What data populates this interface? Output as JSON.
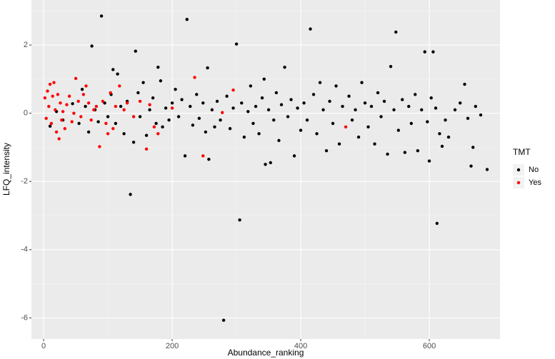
{
  "chart_data": {
    "type": "scatter",
    "x_label": "Abundance_ranking",
    "y_label": "LFQ_intensity",
    "legend_title": "TMT",
    "legend_position": "right",
    "xlim": [
      -19,
      710
    ],
    "ylim": [
      -6.62,
      3.32
    ],
    "xticks": [
      0,
      200,
      400,
      600
    ],
    "yticks": [
      -6,
      -4,
      -2,
      0,
      2
    ],
    "x_minor_ticks": [
      100,
      300,
      500
    ],
    "y_minor_ticks": [
      -5,
      -3,
      -1,
      1,
      3
    ],
    "grid": true,
    "series": [
      {
        "name": "No",
        "color": "#000000",
        "x": [
          10,
          20,
          30,
          45,
          55,
          60,
          65,
          70,
          75,
          80,
          85,
          90,
          95,
          100,
          105,
          108,
          112,
          115,
          120,
          125,
          130,
          135,
          140,
          143,
          147,
          150,
          155,
          160,
          165,
          170,
          175,
          178,
          182,
          185,
          190,
          195,
          200,
          205,
          210,
          215,
          220,
          223,
          228,
          232,
          238,
          242,
          248,
          252,
          255,
          257,
          262,
          266,
          270,
          275,
          280,
          285,
          290,
          295,
          300,
          305,
          308,
          312,
          318,
          322,
          326,
          330,
          335,
          340,
          343,
          345,
          350,
          353,
          358,
          362,
          366,
          370,
          375,
          380,
          385,
          390,
          395,
          400,
          405,
          410,
          415,
          420,
          425,
          430,
          435,
          440,
          445,
          450,
          455,
          460,
          465,
          475,
          480,
          485,
          490,
          495,
          500,
          505,
          510,
          515,
          520,
          525,
          530,
          535,
          540,
          545,
          548,
          552,
          558,
          562,
          568,
          572,
          578,
          582,
          588,
          593,
          597,
          600,
          603,
          606,
          610,
          612,
          616,
          620,
          625,
          630,
          640,
          648,
          655,
          660,
          665,
          668,
          672,
          680,
          690
        ],
        "values": [
          -0.38,
          0.05,
          -0.2,
          0.28,
          -0.3,
          0.7,
          0.2,
          -0.55,
          1.97,
          0.1,
          -0.25,
          2.85,
          0.3,
          -0.1,
          0.55,
          1.28,
          -0.3,
          1.15,
          0.2,
          -0.6,
          0.35,
          -2.38,
          -0.85,
          1.82,
          0.6,
          -0.1,
          0.9,
          -0.65,
          0.1,
          0.45,
          -0.3,
          1.35,
          0.95,
          -0.4,
          0.15,
          -0.2,
          0.3,
          0.7,
          -0.1,
          0.4,
          -1.25,
          2.75,
          0.2,
          -0.35,
          0.55,
          -0.15,
          0.3,
          -0.55,
          1.33,
          -1.35,
          0.1,
          -0.4,
          0.35,
          -0.2,
          -6.07,
          0.5,
          -0.45,
          0.15,
          2.03,
          -3.13,
          0.3,
          -0.7,
          0.05,
          0.8,
          -0.3,
          0.2,
          -0.6,
          0.45,
          1.0,
          -1.5,
          0.1,
          -1.45,
          -0.2,
          0.6,
          -0.8,
          0.25,
          1.35,
          -0.1,
          0.4,
          -1.25,
          0.15,
          -0.5,
          0.3,
          -0.2,
          2.47,
          0.55,
          -0.6,
          0.9,
          0.1,
          -1.1,
          0.35,
          -0.3,
          0.8,
          -0.9,
          0.2,
          0.5,
          -0.2,
          0.1,
          -0.7,
          0.9,
          0.3,
          -0.4,
          0.2,
          -0.9,
          0.6,
          -0.1,
          0.35,
          -1.2,
          1.37,
          0.1,
          2.38,
          -0.5,
          0.4,
          -1.15,
          0.2,
          -0.3,
          0.55,
          -1.1,
          0.1,
          1.8,
          -0.25,
          -1.4,
          0.45,
          1.8,
          0.15,
          -3.23,
          -0.6,
          -0.97,
          -0.2,
          -0.7,
          0.1,
          0.3,
          0.85,
          -0.15,
          -1.55,
          -1.0,
          0.2,
          -0.05,
          -1.65
        ]
      },
      {
        "name": "Yes",
        "color": "#ff0000",
        "x": [
          2,
          4,
          6,
          8,
          10,
          12,
          14,
          16,
          18,
          20,
          22,
          24,
          26,
          28,
          30,
          33,
          36,
          40,
          44,
          47,
          50,
          54,
          58,
          62,
          66,
          70,
          74,
          78,
          82,
          87,
          92,
          97,
          100,
          104,
          108,
          112,
          118,
          125,
          130,
          140,
          150,
          160,
          165,
          172,
          178,
          200,
          235,
          248,
          278,
          295,
          470
        ],
        "values": [
          0.45,
          -0.15,
          0.65,
          0.2,
          0.85,
          -0.3,
          0.5,
          0.9,
          0.1,
          -0.55,
          0.55,
          -0.75,
          0.3,
          -0.2,
          0.05,
          -0.45,
          0.25,
          0.5,
          -0.25,
          0.0,
          1.02,
          0.35,
          -0.1,
          0.55,
          0.8,
          0.3,
          -0.2,
          0.1,
          0.2,
          -0.98,
          0.35,
          -0.3,
          -0.6,
          0.6,
          -0.45,
          0.2,
          0.8,
          0.1,
          0.3,
          -0.1,
          0.35,
          -1.05,
          0.25,
          -0.4,
          -0.6,
          0.15,
          1.05,
          -1.25,
          0.02,
          0.68,
          -0.4
        ]
      }
    ]
  }
}
